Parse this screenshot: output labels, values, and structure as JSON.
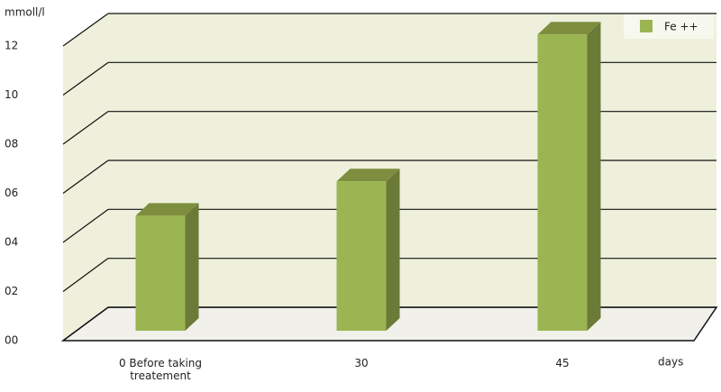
{
  "chart_data": {
    "type": "bar",
    "y_label": "mmoll/l",
    "x_label": "days",
    "categories": [
      "0 Before taking treatement",
      "30",
      "45"
    ],
    "series": [
      {
        "name": "Fe ++",
        "color": "#9bb552",
        "values": [
          4.7,
          6.1,
          12.1
        ]
      }
    ],
    "ylim": [
      0,
      12
    ],
    "yticks": [
      {
        "value": 0,
        "label": "00"
      },
      {
        "value": 2,
        "label": "02"
      },
      {
        "value": 4,
        "label": "04"
      },
      {
        "value": 6,
        "label": "06"
      },
      {
        "value": 8,
        "label": "08"
      },
      10,
      12
    ],
    "grid": true,
    "legend": "top-right"
  }
}
